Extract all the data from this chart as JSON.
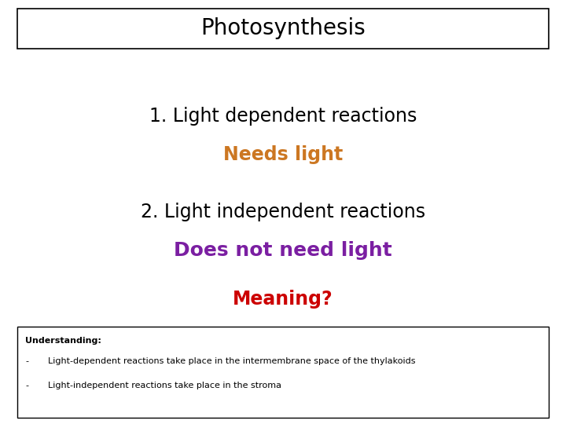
{
  "title": "Photosynthesis",
  "title_fontsize": 20,
  "title_color": "#000000",
  "line1": "1. Light dependent reactions",
  "line1_color": "#000000",
  "line1_fontsize": 17,
  "line2": "Needs light",
  "line2_color": "#CC7722",
  "line2_fontsize": 17,
  "line3": "2. Light independent reactions",
  "line3_color": "#000000",
  "line3_fontsize": 17,
  "line4": "Does not need light",
  "line4_color": "#7B1FA2",
  "line4_fontsize": 18,
  "line5": "Meaning?",
  "line5_color": "#CC0000",
  "line5_fontsize": 17,
  "understanding_header": "Understanding:",
  "bullet1": "Light-dependent reactions take place in the intermembrane space of the thylakoids",
  "bullet2": "Light-independent reactions take place in the stroma",
  "small_fontsize": 8,
  "background_color": "#ffffff"
}
